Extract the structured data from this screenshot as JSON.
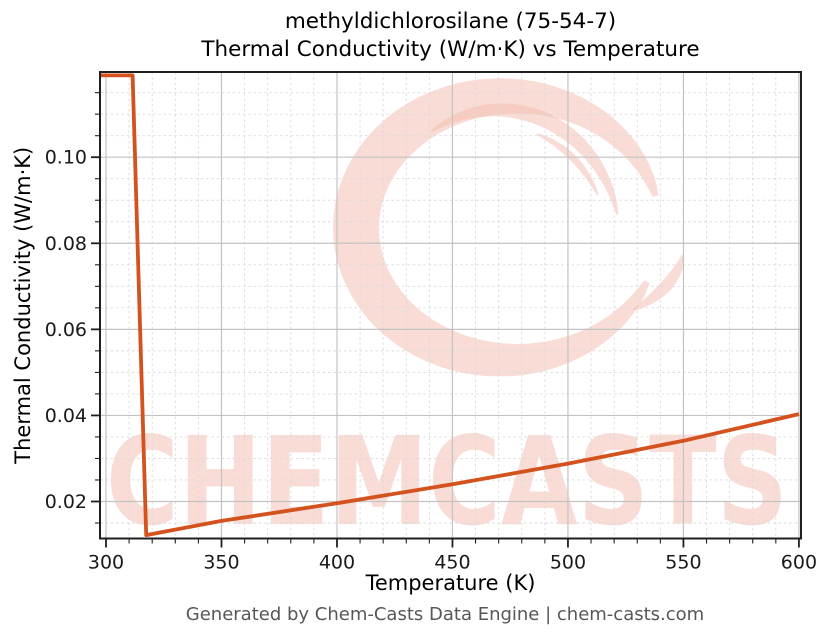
{
  "title": {
    "line1": "methyldichlorosilane (75-54-7)",
    "line2": "Thermal Conductivity (W/m·K) vs Temperature"
  },
  "footer": "Generated by Chem-Casts Data Engine | chem-casts.com",
  "watermark": {
    "text": "CHEMCASTS",
    "logo": "brush-swirl-circle",
    "color": "#f3baab"
  },
  "chart_data": {
    "type": "line",
    "title": "methyldichlorosilane (75-54-7) — Thermal Conductivity (W/m·K) vs Temperature",
    "xlabel": "Temperature (K)",
    "ylabel": "Thermal Conductivity (W/m·K)",
    "xlim": [
      297.4,
      600.9
    ],
    "ylim": [
      0.0114,
      0.1198
    ],
    "x_ticks": [
      300,
      350,
      400,
      450,
      500,
      550,
      600
    ],
    "x_tick_labels": [
      "300",
      "350",
      "400",
      "450",
      "500",
      "550",
      "600"
    ],
    "y_ticks": [
      0.02,
      0.04,
      0.06,
      0.08,
      0.1
    ],
    "y_tick_labels": [
      "0.02",
      "0.04",
      "0.06",
      "0.08",
      "0.10"
    ],
    "x_minor_step": 10,
    "y_minor_step": 0.005,
    "grid": true,
    "legend": "none",
    "series": [
      {
        "name": "thermal_conductivity",
        "points": [
          [
            297.4,
            0.119
          ],
          [
            311.5,
            0.119
          ],
          [
            317.4,
            0.0122
          ],
          [
            350,
            0.0155
          ],
          [
            400,
            0.0196
          ],
          [
            450,
            0.024
          ],
          [
            500,
            0.0288
          ],
          [
            550,
            0.0341
          ],
          [
            600,
            0.0403
          ]
        ]
      }
    ],
    "colors": {
      "line": "#d4521e",
      "grid_major": "#c3c3c3",
      "grid_minor": "#dadada",
      "spine": "#1f1f1f",
      "tick_label": "#1a1a1a"
    }
  }
}
